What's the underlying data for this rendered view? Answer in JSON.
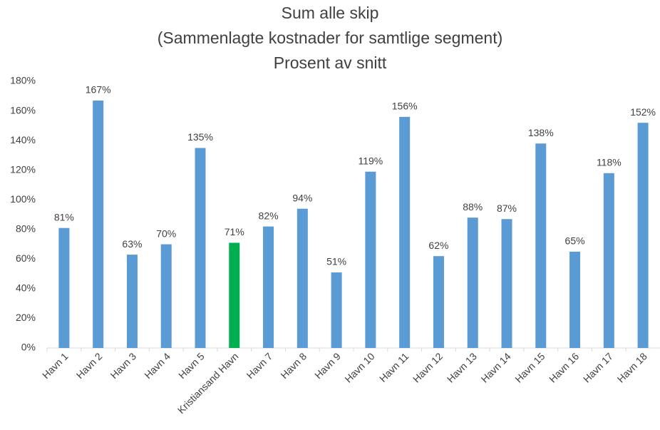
{
  "chart_data": {
    "type": "bar",
    "title": [
      "Sum alle skip",
      "(Sammenlagte kostnader for samtlige segment)",
      "Prosent av snitt"
    ],
    "categories": [
      "Havn 1",
      "Havn 2",
      "Havn 3",
      "Havn 4",
      "Havn 5",
      "Kristiansand Havn",
      "Havn 7",
      "Havn 8",
      "Havn 9",
      "Havn 10",
      "Havn 11",
      "Havn 12",
      "Havn 13",
      "Havn 14",
      "Havn 15",
      "Havn 16",
      "Havn 17",
      "Havn 18"
    ],
    "values": [
      81,
      167,
      63,
      70,
      135,
      71,
      82,
      94,
      51,
      119,
      156,
      62,
      88,
      87,
      138,
      65,
      118,
      152
    ],
    "value_labels": [
      "81%",
      "167%",
      "63%",
      "70%",
      "135%",
      "71%",
      "82%",
      "94%",
      "51%",
      "119%",
      "156%",
      "62%",
      "88%",
      "87%",
      "138%",
      "65%",
      "118%",
      "152%"
    ],
    "colors": [
      "#5b9bd5",
      "#5b9bd5",
      "#5b9bd5",
      "#5b9bd5",
      "#5b9bd5",
      "#00b050",
      "#5b9bd5",
      "#5b9bd5",
      "#5b9bd5",
      "#5b9bd5",
      "#5b9bd5",
      "#5b9bd5",
      "#5b9bd5",
      "#5b9bd5",
      "#5b9bd5",
      "#5b9bd5",
      "#5b9bd5",
      "#5b9bd5"
    ],
    "ylim": [
      0,
      180
    ],
    "yticks": [
      {
        "value": 0,
        "label": "0%"
      },
      {
        "value": 20,
        "label": "20%"
      },
      {
        "value": 40,
        "label": "40%"
      },
      {
        "value": 60,
        "label": "60%"
      },
      {
        "value": 80,
        "label": "80%"
      },
      {
        "value": 100,
        "label": "100%"
      },
      {
        "value": 120,
        "label": "120%"
      },
      {
        "value": 140,
        "label": "140%"
      },
      {
        "value": 160,
        "label": "160%"
      },
      {
        "value": 180,
        "label": "180%"
      }
    ],
    "grid": false
  }
}
